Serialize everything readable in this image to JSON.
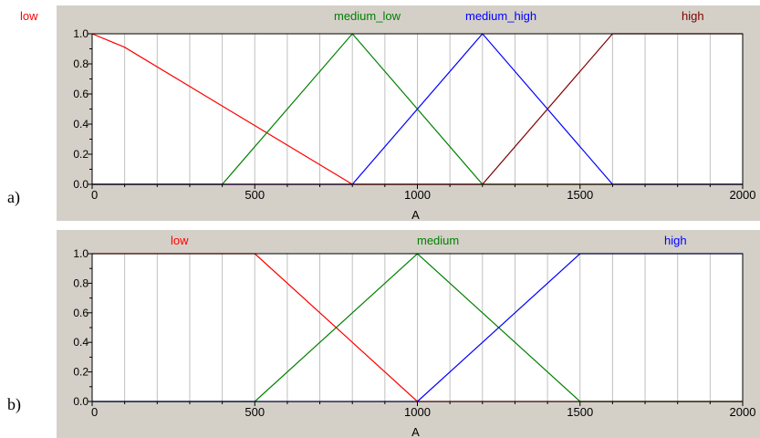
{
  "panels": [
    {
      "label": "a)"
    },
    {
      "label": "b)"
    }
  ],
  "chart_data": [
    {
      "type": "line",
      "title": "",
      "xlabel": "A",
      "ylabel": "",
      "xlim": [
        0,
        2000
      ],
      "ylim": [
        0,
        1
      ],
      "xticks": [
        "0",
        "500",
        "1000",
        "1500",
        "2000"
      ],
      "yticks": [
        "0.0",
        "0.2",
        "0.4",
        "0.6",
        "0.8",
        "1.0"
      ],
      "grid": true,
      "series": [
        {
          "name": "low",
          "color": "#ff0000",
          "x": [
            0,
            100,
            800,
            2000
          ],
          "y": [
            1,
            0.91,
            0,
            0
          ]
        },
        {
          "name": "medium_low",
          "color": "#008000",
          "x": [
            0,
            400,
            800,
            1200,
            2000
          ],
          "y": [
            0,
            0,
            1,
            0,
            0
          ]
        },
        {
          "name": "medium_high",
          "color": "#0000ff",
          "x": [
            0,
            800,
            1200,
            1600,
            2000
          ],
          "y": [
            0,
            0,
            1,
            0,
            0
          ]
        },
        {
          "name": "high",
          "color": "#800000",
          "x": [
            0,
            1200,
            1600,
            2000
          ],
          "y": [
            0,
            0,
            1,
            1
          ]
        }
      ]
    },
    {
      "type": "line",
      "title": "",
      "xlabel": "A",
      "ylabel": "",
      "xlim": [
        0,
        2000
      ],
      "ylim": [
        0,
        1
      ],
      "xticks": [
        "0",
        "500",
        "1000",
        "1500",
        "2000"
      ],
      "yticks": [
        "0.0",
        "0.2",
        "0.4",
        "0.6",
        "0.8",
        "1.0"
      ],
      "grid": true,
      "series": [
        {
          "name": "low",
          "color": "#ff0000",
          "x": [
            0,
            500,
            1000,
            2000
          ],
          "y": [
            1,
            1,
            0,
            0
          ]
        },
        {
          "name": "medium",
          "color": "#008000",
          "x": [
            0,
            500,
            1000,
            1500,
            2000
          ],
          "y": [
            0,
            0,
            1,
            0,
            0
          ]
        },
        {
          "name": "high",
          "color": "#0000ff",
          "x": [
            0,
            1000,
            1500,
            2000
          ],
          "y": [
            0,
            0,
            1,
            1
          ]
        }
      ]
    }
  ]
}
